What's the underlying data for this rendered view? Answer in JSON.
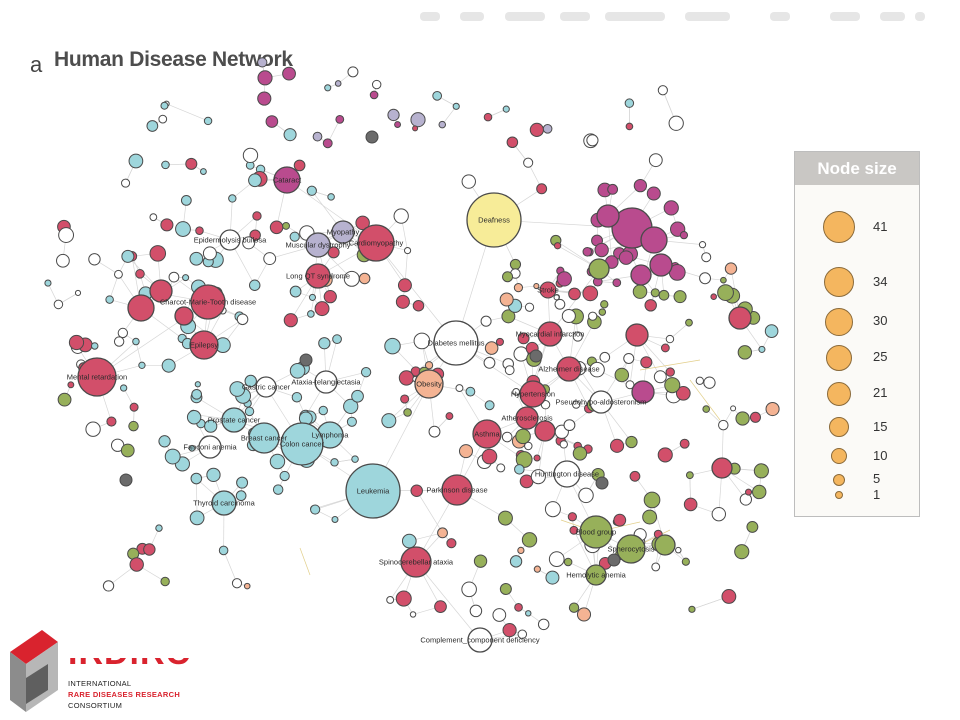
{
  "panel": {
    "letter": "a",
    "title": "Human Disease Network"
  },
  "legend": {
    "title": "Node size",
    "entries": [
      "41",
      "34",
      "30",
      "25",
      "21",
      "15",
      "10",
      "5",
      "1"
    ],
    "color": "#f4b65f"
  },
  "network": {
    "labels": [
      "Cataract",
      "Epidermolysis bullosa",
      "Myopathy",
      "Muscular dystrophy",
      "Cardiomyopathy",
      "Long QT syndrome",
      "Charcot-Marie-Tooth disease",
      "Epilepsy",
      "Mental retardation",
      "Deafness",
      "Diabetes mellitus",
      "Obesity",
      "Ataxia-telangiectasia",
      "Gastric cancer",
      "Prostate cancer",
      "Breast cancer",
      "Lymphoma",
      "Colon cancer",
      "Fanconi anemia",
      "Thyroid carcinoma",
      "Leukemia",
      "Parkinson disease",
      "Spinocerebellar ataxia",
      "Complement_component deficiency",
      "Stroke",
      "Myocardial infarction",
      "Alzheimer disease",
      "Hypertension",
      "Atherosclerosis",
      "Pseudohypo-aldosteronism",
      "Asthma",
      "Huntington disease",
      "Blood group",
      "Spherocytosis",
      "Hemolytic anemia"
    ],
    "colors": {
      "cancer": "#9ed6dc",
      "neuro": "#d24f6a",
      "metabolic": "#f4b393",
      "hematological": "#97b05a",
      "ophthalmo": "#b94b8e",
      "muscular": "#b7b2cf",
      "ear": "#f7ec98",
      "other": "#ffffff",
      "edge": "#d6d6d6"
    }
  },
  "logo": {
    "name": "IRDiRC",
    "line1": "INTERNATIONAL",
    "line2": "RARE DISEASES RESEARCH",
    "line3": "CONSORTIUM"
  }
}
